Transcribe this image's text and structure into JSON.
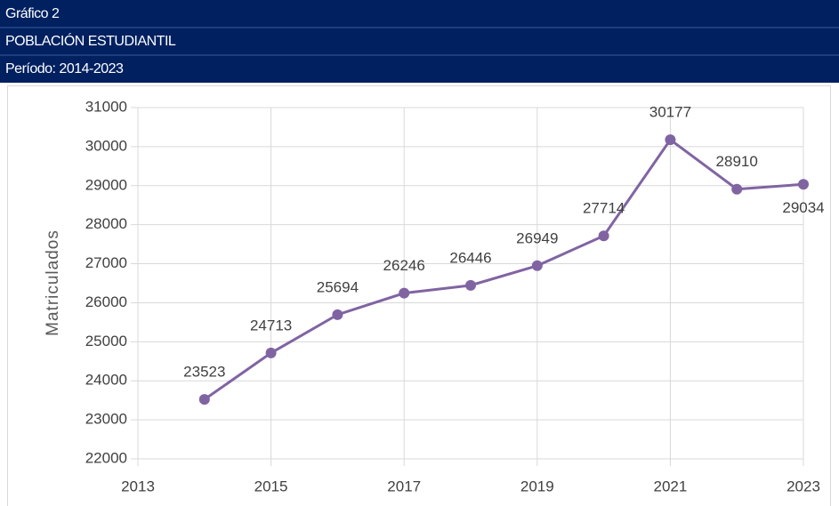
{
  "chart_data": {
    "type": "line",
    "heading": "Gráfico 2",
    "title": "POBLACIÓN ESTUDIANTIL",
    "subtitle": "Período: 2014-2023",
    "y_label": "Matriculados",
    "x": [
      2014,
      2015,
      2016,
      2017,
      2018,
      2019,
      2020,
      2021,
      2022,
      2023
    ],
    "series": [
      {
        "name": "Matriculados",
        "color": "#8064a2",
        "values": [
          23523,
          24713,
          25694,
          26246,
          26446,
          26949,
          27714,
          30177,
          28910,
          29034
        ]
      }
    ],
    "xlim": [
      2013,
      2023
    ],
    "xticks": [
      2013,
      2015,
      2017,
      2019,
      2021,
      2023
    ],
    "ylim": [
      22000,
      31000
    ],
    "yticks": [
      22000,
      23000,
      24000,
      25000,
      26000,
      27000,
      28000,
      29000,
      30000,
      31000
    ],
    "grid": true
  }
}
